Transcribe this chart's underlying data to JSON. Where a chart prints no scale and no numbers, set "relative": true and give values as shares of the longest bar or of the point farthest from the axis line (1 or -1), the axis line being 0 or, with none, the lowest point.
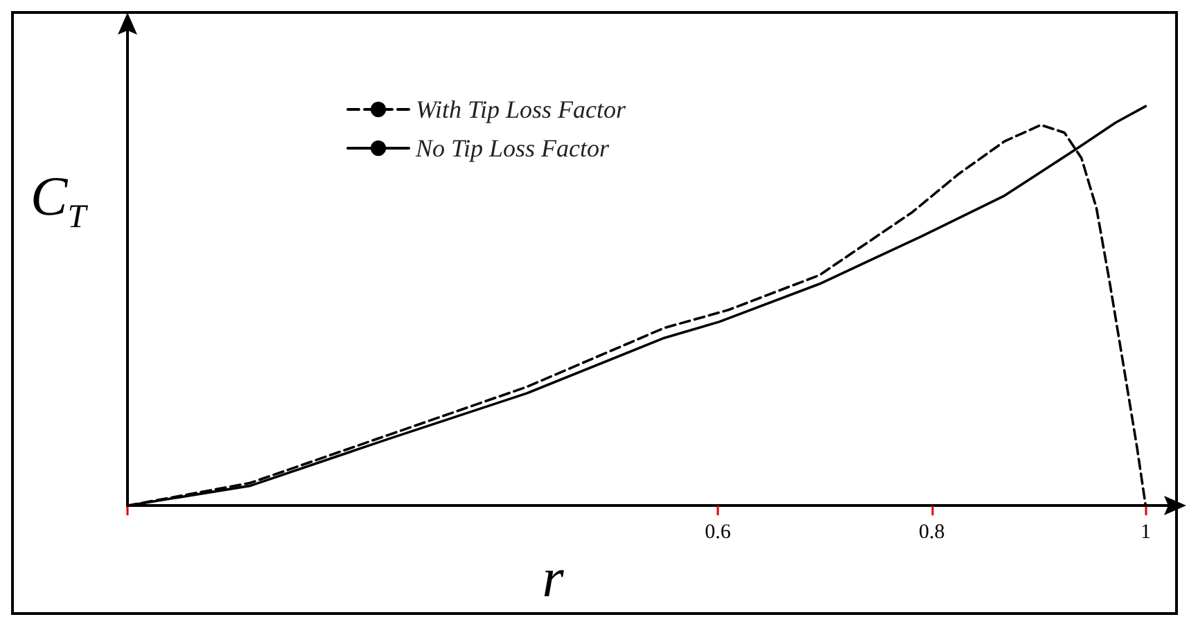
{
  "chart_data": {
    "type": "line",
    "relative": true,
    "xlabel": "r",
    "ylabel": "C$_{T}$",
    "xlim": [
      0.048,
      1.025
    ],
    "xticks": [
      {
        "value": 0.048,
        "label": null
      },
      0.6,
      0.8,
      1
    ],
    "legend": "top left",
    "grid": false,
    "marker": "none",
    "series": [
      {
        "name": "With Tip Loss Factor",
        "color": "#000000",
        "line_style": "dashed",
        "x": [
          0.048,
          0.163,
          0.292,
          0.421,
          0.55,
          0.61,
          0.695,
          0.782,
          0.825,
          0.868,
          0.902,
          0.924,
          0.94,
          0.954,
          0.966,
          0.979,
          0.992,
          1.0
        ],
        "values": [
          0,
          0.057,
          0.177,
          0.297,
          0.445,
          0.49,
          0.577,
          0.735,
          0.83,
          0.912,
          0.953,
          0.934,
          0.87,
          0.745,
          0.565,
          0.356,
          0.145,
          0
        ]
      },
      {
        "name": "No Tip Loss Factor",
        "color": "#000000",
        "line_style": "solid",
        "x": [
          0.048,
          0.163,
          0.292,
          0.421,
          0.55,
          0.601,
          0.695,
          0.791,
          0.868,
          0.937,
          0.972,
          1.0
        ],
        "values": [
          0,
          0.05,
          0.167,
          0.281,
          0.42,
          0.46,
          0.555,
          0.675,
          0.776,
          0.896,
          0.959,
          1.0
        ]
      }
    ]
  }
}
